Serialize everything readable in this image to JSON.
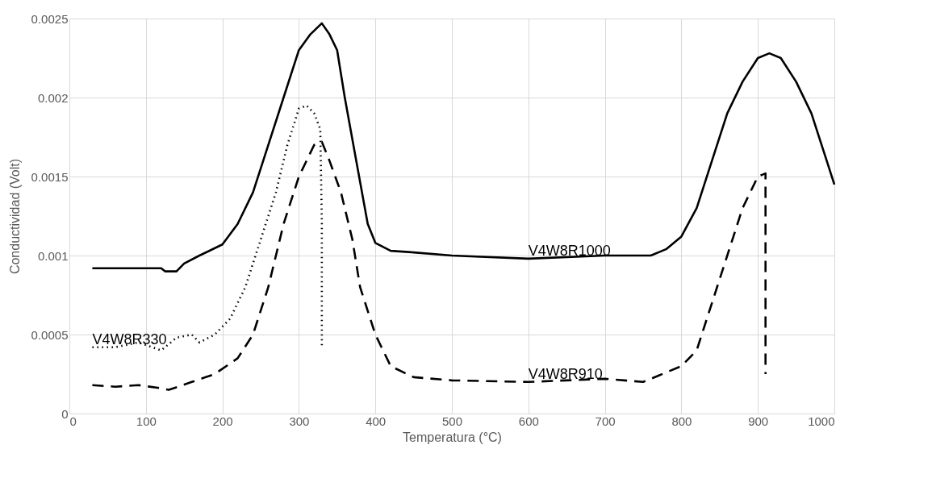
{
  "chart_data": {
    "type": "line",
    "xlabel": "Temperatura (°C)",
    "ylabel": "Conductividad (Volt)",
    "xlim": [
      0,
      1000
    ],
    "xticks": [
      0,
      100,
      200,
      300,
      400,
      500,
      600,
      700,
      800,
      900,
      1000
    ],
    "ylim": [
      0,
      0.0025
    ],
    "yticks": [
      0,
      0.0005,
      0.001,
      0.0015,
      0.002,
      0.0025
    ],
    "grid": true,
    "legend": false,
    "marker": "none",
    "series": [
      {
        "name": "V4W8R330",
        "color": "#000000",
        "line_style": "dotted",
        "x": [
          30,
          60,
          90,
          120,
          140,
          160,
          170,
          190,
          210,
          230,
          250,
          270,
          285,
          300,
          310,
          320,
          328,
          330,
          330
        ],
        "values": [
          0.00042,
          0.00042,
          0.00045,
          0.0004,
          0.00048,
          0.0005,
          0.00045,
          0.0005,
          0.0006,
          0.0008,
          0.0011,
          0.0014,
          0.0017,
          0.00193,
          0.00195,
          0.0019,
          0.0018,
          0.0012,
          0.00042
        ]
      },
      {
        "name": "V4W8R1000",
        "color": "#000000",
        "line_style": "solid",
        "x": [
          30,
          120,
          125,
          140,
          150,
          170,
          200,
          220,
          240,
          260,
          280,
          300,
          315,
          330,
          340,
          350,
          360,
          375,
          390,
          400,
          420,
          450,
          500,
          600,
          700,
          760,
          780,
          800,
          820,
          840,
          860,
          880,
          900,
          915,
          930,
          950,
          970,
          990,
          1000
        ],
        "values": [
          0.00092,
          0.00092,
          0.0009,
          0.0009,
          0.00095,
          0.001,
          0.00107,
          0.0012,
          0.0014,
          0.0017,
          0.002,
          0.0023,
          0.0024,
          0.00247,
          0.0024,
          0.0023,
          0.002,
          0.0016,
          0.0012,
          0.00108,
          0.00103,
          0.00102,
          0.001,
          0.00098,
          0.001,
          0.001,
          0.00104,
          0.00112,
          0.0013,
          0.0016,
          0.0019,
          0.0021,
          0.00225,
          0.00228,
          0.00225,
          0.0021,
          0.0019,
          0.0016,
          0.00145
        ]
      },
      {
        "name": "V4W8R910",
        "color": "#000000",
        "line_style": "dashed",
        "x": [
          30,
          60,
          90,
          120,
          130,
          160,
          190,
          220,
          240,
          260,
          280,
          300,
          320,
          330,
          340,
          355,
          370,
          380,
          400,
          420,
          450,
          500,
          600,
          700,
          750,
          770,
          800,
          820,
          840,
          860,
          880,
          900,
          910,
          910
        ],
        "values": [
          0.00018,
          0.00017,
          0.00018,
          0.00016,
          0.00015,
          0.0002,
          0.00025,
          0.00035,
          0.0005,
          0.0008,
          0.0012,
          0.0015,
          0.0017,
          0.00172,
          0.0016,
          0.0014,
          0.0011,
          0.0008,
          0.0005,
          0.0003,
          0.00023,
          0.00021,
          0.0002,
          0.00022,
          0.0002,
          0.00024,
          0.0003,
          0.0004,
          0.0007,
          0.001,
          0.0013,
          0.0015,
          0.00152,
          0.00025
        ]
      }
    ]
  }
}
